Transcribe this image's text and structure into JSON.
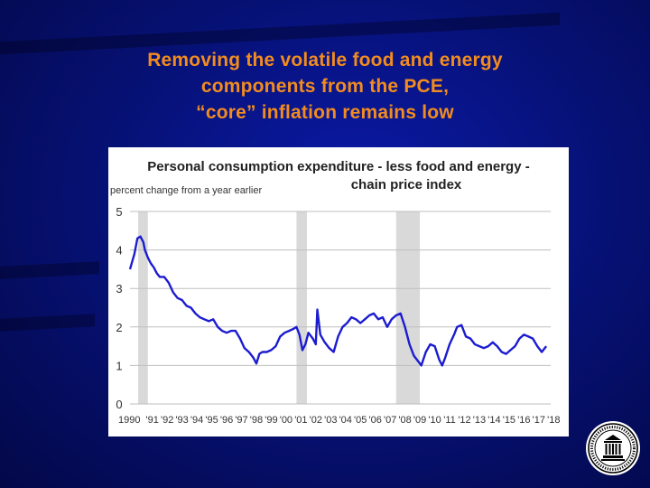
{
  "slide": {
    "title_lines": [
      "Removing the volatile food and energy",
      "components from the PCE,",
      "“core” inflation remains low"
    ]
  },
  "colors": {
    "background": "#061070",
    "title": "#f28c1e",
    "line": "#1c1cd0",
    "recession": "#d9d9d9",
    "grid": "#bfbfbf"
  },
  "chart_data": {
    "type": "line",
    "title_lines": [
      "Personal consumption expenditure - less food and energy -",
      "chain price index"
    ],
    "ylabel": "percent change from a year earlier",
    "xlabel": "",
    "ylim": [
      0,
      5
    ],
    "yticks": [
      0,
      1,
      2,
      3,
      4,
      5
    ],
    "xlim": [
      1990,
      2018.3
    ],
    "xtick_labels": [
      "1990",
      "'91",
      "'92",
      "'93",
      "'94",
      "'95",
      "'96",
      "'97",
      "'98",
      "'99",
      "'00",
      "'01",
      "'02",
      "'03",
      "'04",
      "'05",
      "'06",
      "'07",
      "'08",
      "'09",
      "'10",
      "'11",
      "'12",
      "'13",
      "'14",
      "'15",
      "'16",
      "'17",
      "'18"
    ],
    "grid": true,
    "recessions": [
      [
        1990.55,
        1991.2
      ],
      [
        2001.2,
        2001.9
      ],
      [
        2007.9,
        2009.5
      ]
    ],
    "series": [
      {
        "x": [
          1990.0,
          1990.3,
          1990.5,
          1990.7,
          1990.9,
          1991.0,
          1991.2,
          1991.4,
          1991.6,
          1991.8,
          1992.0,
          1992.3,
          1992.6,
          1992.9,
          1993.2,
          1993.5,
          1993.8,
          1994.1,
          1994.4,
          1994.7,
          1995.0,
          1995.3,
          1995.6,
          1995.9,
          1996.2,
          1996.5,
          1996.8,
          1997.1,
          1997.4,
          1997.7,
          1998.0,
          1998.3,
          1998.5,
          1998.7,
          1998.9,
          1999.2,
          1999.5,
          1999.8,
          2000.1,
          2000.4,
          2000.7,
          2001.0,
          2001.2,
          2001.4,
          2001.6,
          2001.8,
          2002.0,
          2002.3,
          2002.5,
          2002.6,
          2002.8,
          2003.1,
          2003.4,
          2003.7,
          2004.0,
          2004.3,
          2004.6,
          2004.9,
          2005.2,
          2005.5,
          2005.8,
          2006.1,
          2006.4,
          2006.7,
          2007.0,
          2007.3,
          2007.6,
          2007.9,
          2008.2,
          2008.5,
          2008.8,
          2009.1,
          2009.3,
          2009.6,
          2009.9,
          2010.2,
          2010.5,
          2010.8,
          2011.0,
          2011.2,
          2011.5,
          2011.8,
          2012.0,
          2012.3,
          2012.6,
          2012.9,
          2013.2,
          2013.5,
          2013.8,
          2014.1,
          2014.4,
          2014.7,
          2015.0,
          2015.3,
          2015.6,
          2015.9,
          2016.2,
          2016.5,
          2016.8,
          2017.1,
          2017.4,
          2017.7,
          2018.0
        ],
        "y": [
          3.5,
          3.9,
          4.3,
          4.35,
          4.2,
          4.0,
          3.8,
          3.65,
          3.55,
          3.4,
          3.3,
          3.3,
          3.15,
          2.9,
          2.75,
          2.7,
          2.55,
          2.5,
          2.35,
          2.25,
          2.2,
          2.15,
          2.2,
          2.0,
          1.9,
          1.85,
          1.9,
          1.9,
          1.7,
          1.45,
          1.35,
          1.2,
          1.05,
          1.3,
          1.35,
          1.35,
          1.4,
          1.5,
          1.75,
          1.85,
          1.9,
          1.95,
          2.0,
          1.8,
          1.4,
          1.55,
          1.85,
          1.7,
          1.55,
          2.45,
          1.8,
          1.6,
          1.45,
          1.35,
          1.75,
          2.0,
          2.1,
          2.25,
          2.2,
          2.1,
          2.2,
          2.3,
          2.35,
          2.2,
          2.25,
          2.0,
          2.2,
          2.3,
          2.35,
          2.0,
          1.55,
          1.25,
          1.15,
          1.0,
          1.35,
          1.55,
          1.5,
          1.15,
          1.0,
          1.2,
          1.55,
          1.8,
          2.0,
          2.05,
          1.75,
          1.7,
          1.55,
          1.5,
          1.45,
          1.5,
          1.6,
          1.5,
          1.35,
          1.3,
          1.4,
          1.5,
          1.7,
          1.8,
          1.75,
          1.7,
          1.5,
          1.35,
          1.5
        ]
      }
    ]
  }
}
